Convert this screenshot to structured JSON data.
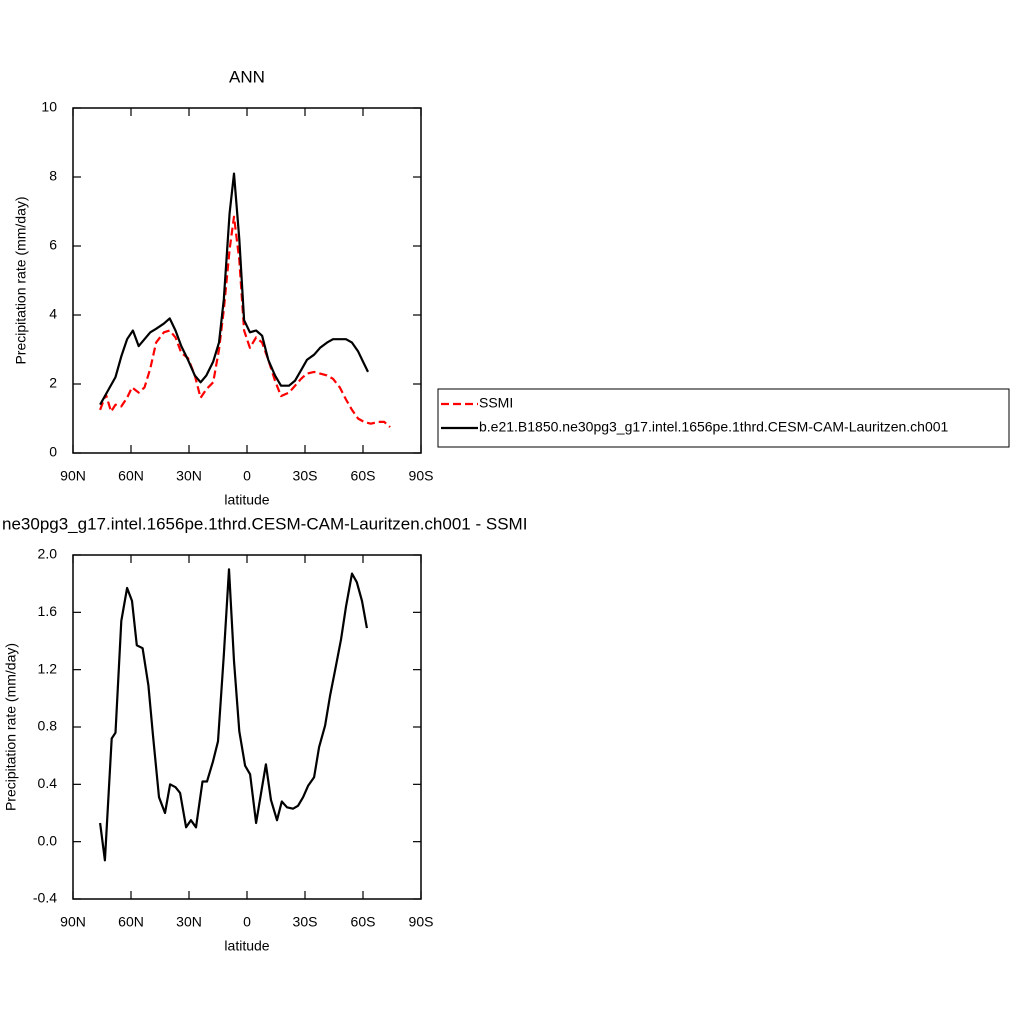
{
  "chart_data": [
    {
      "type": "line",
      "title": "ANN",
      "xlabel": "latitude",
      "ylabel": "Precipitation rate (mm/day)",
      "xlim": [
        90,
        -90
      ],
      "xticks": [
        {
          "value": 90,
          "label": "90N"
        },
        {
          "value": 60,
          "label": "60N"
        },
        {
          "value": 30,
          "label": "30N"
        },
        0,
        {
          "value": -30,
          "label": "30S"
        },
        {
          "value": -60,
          "label": "60S"
        },
        {
          "value": -90,
          "label": "90S"
        }
      ],
      "ylim": [
        0,
        10
      ],
      "yticks": [
        0,
        2,
        4,
        6,
        8,
        10
      ],
      "legend": "right",
      "series": [
        {
          "name": "SSMI",
          "color": "#ff0000",
          "dash": true,
          "x": [
            76,
            73,
            70.3,
            68,
            65,
            62,
            59.5,
            56,
            53,
            50,
            47,
            43,
            40,
            37,
            34,
            30.5,
            27,
            24,
            21,
            17.5,
            14.5,
            12,
            9,
            6.7,
            4,
            1.5,
            -1.5,
            -4.7,
            -7.8,
            -11,
            -14.5,
            -17.6,
            -21.7,
            -24.9,
            -28,
            -31,
            -34.7,
            -37.8,
            -41.4,
            -44.5,
            -48,
            -51.2,
            -54.3,
            -57.4,
            -60.5,
            -64,
            -68,
            -71,
            -74
          ],
          "values": [
            1.25,
            1.7,
            1.2,
            1.4,
            1.35,
            1.6,
            1.9,
            1.75,
            1.9,
            2.45,
            3.2,
            3.5,
            3.55,
            3.35,
            2.9,
            2.75,
            2.25,
            1.6,
            1.85,
            2.05,
            3.0,
            4.15,
            5.9,
            6.85,
            5.6,
            3.55,
            3.05,
            3.35,
            3.2,
            2.7,
            2.1,
            1.65,
            1.75,
            1.95,
            2.15,
            2.3,
            2.35,
            2.3,
            2.25,
            2.15,
            1.9,
            1.55,
            1.25,
            1.0,
            0.9,
            0.85,
            0.9,
            0.9,
            0.75
          ]
        },
        {
          "name": "b.e21.B1850.ne30pg3_g17.intel.1656pe.1thrd.CESM-CAM-Lauritzen.ch001",
          "color": "#000000",
          "dash": false,
          "x": [
            76,
            72,
            68,
            65,
            62,
            59,
            56,
            53,
            50,
            47,
            43,
            40,
            37,
            34,
            30.5,
            27,
            24,
            21,
            17.5,
            14.5,
            12,
            9,
            6.7,
            4,
            1.5,
            -1.5,
            -4.7,
            -7.8,
            -11,
            -14.5,
            -17.6,
            -21.7,
            -24.9,
            -28,
            -31,
            -34.7,
            -37.8,
            -41.4,
            -44.5,
            -48,
            -51.2,
            -54.3,
            -57.4,
            -60,
            -62.6
          ],
          "values": [
            1.4,
            1.8,
            2.2,
            2.8,
            3.3,
            3.55,
            3.1,
            3.3,
            3.5,
            3.6,
            3.75,
            3.9,
            3.55,
            3.1,
            2.7,
            2.25,
            2.05,
            2.25,
            2.65,
            3.2,
            4.45,
            6.95,
            8.1,
            6.2,
            3.85,
            3.5,
            3.55,
            3.4,
            2.7,
            2.25,
            1.95,
            1.95,
            2.1,
            2.4,
            2.7,
            2.85,
            3.05,
            3.2,
            3.3,
            3.3,
            3.3,
            3.2,
            2.95,
            2.65,
            2.35
          ]
        }
      ]
    },
    {
      "type": "line",
      "title": "ne30pg3_g17.intel.1656pe.1thrd.CESM-CAM-Lauritzen.ch001 - SSMI",
      "xlabel": "latitude",
      "ylabel": "Precipitation rate (mm/day)",
      "xlim": [
        90,
        -90
      ],
      "xticks": [
        {
          "value": 90,
          "label": "90N"
        },
        {
          "value": 60,
          "label": "60N"
        },
        {
          "value": 30,
          "label": "30N"
        },
        0,
        {
          "value": -30,
          "label": "30S"
        },
        {
          "value": -60,
          "label": "60S"
        },
        {
          "value": -90,
          "label": "90S"
        }
      ],
      "ylim": [
        -0.4,
        2.0
      ],
      "yticks": [
        -0.4,
        {
          "value": 0,
          "label": "0.0"
        },
        0.4,
        0.8,
        1.2,
        1.6,
        {
          "value": 2.0,
          "label": "2.0"
        }
      ],
      "series": [
        {
          "color": "#000000",
          "dash": false,
          "x": [
            76,
            73.5,
            70,
            68,
            65,
            62,
            59.5,
            57,
            54,
            51,
            48.6,
            45.5,
            42.4,
            39.8,
            37,
            34.6,
            31.5,
            29,
            26.4,
            23,
            20.7,
            17.6,
            15,
            12,
            9.3,
            6.7,
            4,
            1,
            -1.6,
            -4.7,
            -7.3,
            -9.8,
            -12.4,
            -15.5,
            -18,
            -20.7,
            -23.8,
            -26.4,
            -29,
            -31.6,
            -34.7,
            -37.3,
            -40.4,
            -43,
            -45.6,
            -48.6,
            -51.2,
            -54.3,
            -56.8,
            -59.5,
            -62
          ],
          "values": [
            0.13,
            -0.13,
            0.72,
            0.76,
            1.54,
            1.77,
            1.68,
            1.37,
            1.35,
            1.09,
            0.74,
            0.31,
            0.2,
            0.4,
            0.38,
            0.34,
            0.1,
            0.15,
            0.1,
            0.42,
            0.42,
            0.56,
            0.7,
            1.3,
            1.9,
            1.26,
            0.77,
            0.53,
            0.47,
            0.13,
            0.34,
            0.54,
            0.29,
            0.15,
            0.28,
            0.24,
            0.23,
            0.25,
            0.31,
            0.39,
            0.45,
            0.66,
            0.81,
            1.02,
            1.2,
            1.41,
            1.64,
            1.87,
            1.81,
            1.68,
            1.49
          ]
        }
      ]
    }
  ]
}
